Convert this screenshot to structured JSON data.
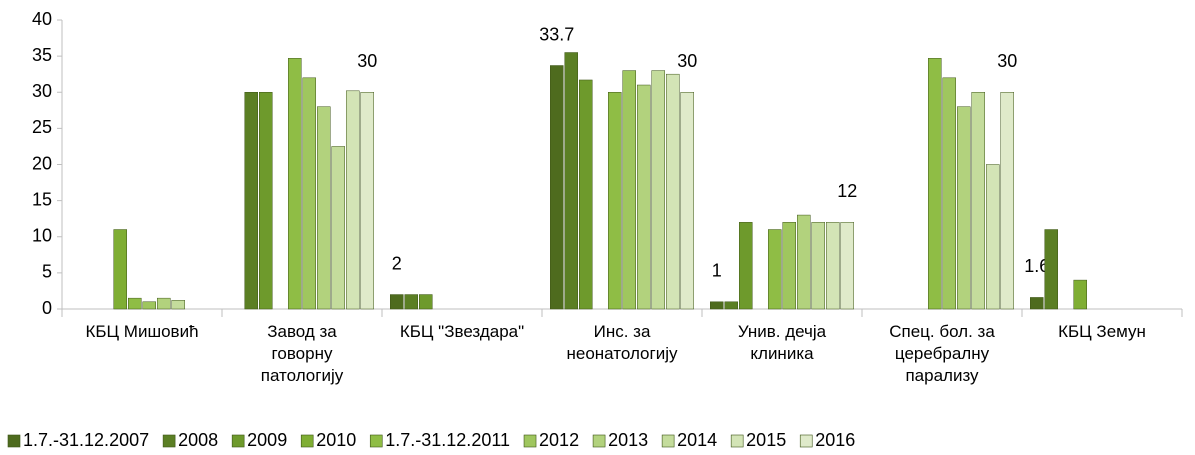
{
  "chart_data": {
    "type": "bar",
    "categories": [
      "КБЦ Мишовић",
      "Завод за говорну патологију",
      "КБЦ \"Звездара\"",
      "Инс. за неонатологију",
      "Унив. дечја клиника",
      "Спец. бол. за церебралну парализу",
      "КБЦ Земун"
    ],
    "series": [
      {
        "name": "1.7.-31.12.2007",
        "color": "#4e6b1e",
        "values": [
          null,
          null,
          2,
          33.7,
          1,
          null,
          1.6
        ],
        "value_labels": [
          null,
          null,
          "2",
          "33.7",
          "1",
          null,
          "1.6"
        ]
      },
      {
        "name": "2008",
        "color": "#5b7f24",
        "values": [
          null,
          30,
          2,
          35.5,
          1,
          null,
          11
        ]
      },
      {
        "name": "2009",
        "color": "#6e9a2c",
        "values": [
          null,
          30,
          2,
          31.7,
          12,
          null,
          null
        ]
      },
      {
        "name": "2010",
        "color": "#7fae33",
        "values": [
          11,
          null,
          null,
          null,
          null,
          null,
          4
        ]
      },
      {
        "name": "1.7.-31.12.2011",
        "color": "#8fbd45",
        "values": [
          1.5,
          34.7,
          null,
          30,
          11,
          34.7,
          null
        ]
      },
      {
        "name": "2012",
        "color": "#9fc65e",
        "values": [
          1,
          32,
          null,
          33,
          12,
          32,
          null
        ]
      },
      {
        "name": "2013",
        "color": "#b2d27d",
        "values": [
          1.5,
          28,
          null,
          31,
          13,
          28,
          null
        ]
      },
      {
        "name": "2014",
        "color": "#c4dc9c",
        "values": [
          1.2,
          22.5,
          null,
          33,
          12,
          30,
          null
        ]
      },
      {
        "name": "2015",
        "color": "#d3e4b6",
        "values": [
          null,
          30.2,
          null,
          32.5,
          12,
          20,
          null
        ]
      },
      {
        "name": "2016",
        "color": "#dfeaca",
        "values": [
          null,
          30,
          null,
          30,
          12,
          30,
          null
        ],
        "value_labels": [
          null,
          "30",
          null,
          "30",
          "12",
          "30",
          null
        ]
      }
    ],
    "ylim": [
      0,
      40
    ],
    "yticks": [
      0,
      5,
      10,
      15,
      20,
      25,
      30,
      35,
      40
    ],
    "grid": false,
    "legend": "bottom"
  }
}
